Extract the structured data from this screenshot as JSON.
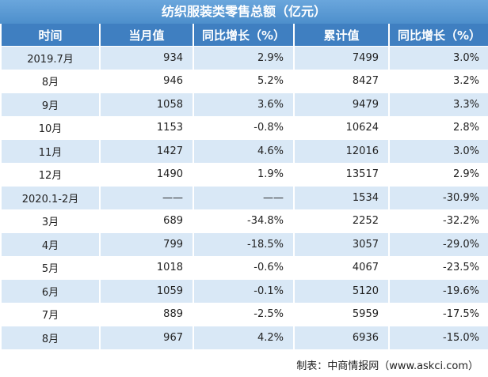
{
  "table": {
    "title": "纺织服装类零售总额（亿元）",
    "header": [
      "时间",
      "当月值",
      "同比增长（%）",
      "累计值",
      "同比增长（%）"
    ],
    "rows": [
      [
        "2019.7月",
        "934",
        "2.9%",
        "7499",
        "3.0%"
      ],
      [
        "8月",
        "946",
        "5.2%",
        "8427",
        "3.2%"
      ],
      [
        "9月",
        "1058",
        "3.6%",
        "9479",
        "3.3%"
      ],
      [
        "10月",
        "1153",
        "-0.8%",
        "10624",
        "2.8%"
      ],
      [
        "11月",
        "1427",
        "4.6%",
        "12016",
        "3.0%"
      ],
      [
        "12月",
        "1490",
        "1.9%",
        "13517",
        "2.9%"
      ],
      [
        "2020.1-2月",
        "——",
        "——",
        "1534",
        "-30.9%"
      ],
      [
        "3月",
        "689",
        "-34.8%",
        "2252",
        "-32.2%"
      ],
      [
        "4月",
        "799",
        "-18.5%",
        "3057",
        "-29.0%"
      ],
      [
        "5月",
        "1018",
        "-0.6%",
        "4067",
        "-23.5%"
      ],
      [
        "6月",
        "1059",
        "-0.1%",
        "5120",
        "-19.6%"
      ],
      [
        "7月",
        "889",
        "-2.5%",
        "5959",
        "-17.5%"
      ],
      [
        "8月",
        "967",
        "4.2%",
        "6936",
        "-15.0%"
      ]
    ],
    "source": "制表：中商情报网（www.askci.com）"
  }
}
